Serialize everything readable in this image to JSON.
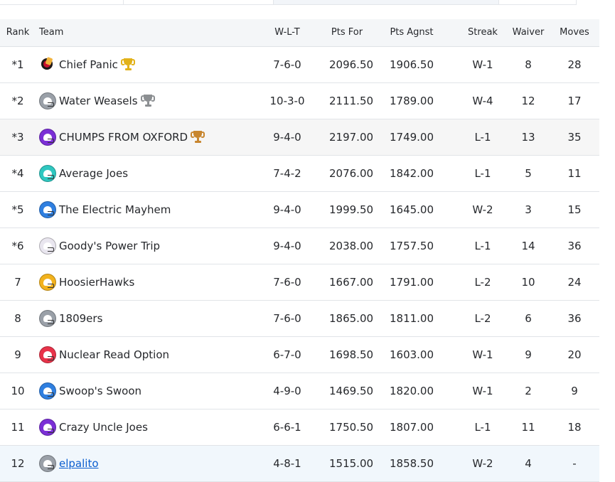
{
  "colors": {
    "header_bg": "#f4f6f8",
    "alt_row_bg": "#f6f6f6",
    "my_team_row_bg": "#f1f7fc",
    "link": "#0b5ecf",
    "gold": "#e2b21a",
    "silver": "#8c8f92",
    "bronze": "#c8862f"
  },
  "columns": {
    "rank": "Rank",
    "team": "Team",
    "wlt": "W-L-T",
    "pts_for": "Pts For",
    "pts_agnst": "Pts Agnst",
    "streak": "Streak",
    "waiver": "Waiver",
    "moves": "Moves"
  },
  "rows": [
    {
      "rank": "*1",
      "team": "Chief Panic",
      "logo": "chief-panic-logo",
      "logo_color": "#c8102e",
      "trophy": "gold",
      "wlt": "7-6-0",
      "pts_for": "2096.50",
      "pts_agnst": "1906.50",
      "streak": "W-1",
      "waiver": "8",
      "moves": "28"
    },
    {
      "rank": "*2",
      "team": "Water Weasels",
      "logo": "helmet-icon",
      "logo_color": "#9aa0a8",
      "trophy": "silver",
      "wlt": "10-3-0",
      "pts_for": "2111.50",
      "pts_agnst": "1789.00",
      "streak": "W-4",
      "waiver": "12",
      "moves": "17"
    },
    {
      "rank": "*3",
      "team": "CHUMPS FROM OXFORD",
      "logo": "helmet-icon",
      "logo_color": "#7b2fd6",
      "trophy": "bronze",
      "wlt": "9-4-0",
      "pts_for": "2197.00",
      "pts_agnst": "1749.00",
      "streak": "L-1",
      "waiver": "13",
      "moves": "35"
    },
    {
      "rank": "*4",
      "team": "Average Joes",
      "logo": "helmet-icon",
      "logo_color": "#2fc7c0",
      "trophy": "",
      "wlt": "7-4-2",
      "pts_for": "2076.00",
      "pts_agnst": "1842.00",
      "streak": "L-1",
      "waiver": "5",
      "moves": "11"
    },
    {
      "rank": "*5",
      "team": "The Electric Mayhem",
      "logo": "helmet-icon",
      "logo_color": "#2f7fe0",
      "trophy": "",
      "wlt": "9-4-0",
      "pts_for": "1999.50",
      "pts_agnst": "1645.00",
      "streak": "W-2",
      "waiver": "3",
      "moves": "15"
    },
    {
      "rank": "*6",
      "team": "Goody's Power Trip",
      "logo": "helmet-icon",
      "logo_color": "#e9e6ef",
      "trophy": "",
      "wlt": "9-4-0",
      "pts_for": "2038.00",
      "pts_agnst": "1757.50",
      "streak": "L-1",
      "waiver": "14",
      "moves": "36"
    },
    {
      "rank": "7",
      "team": "HoosierHawks",
      "logo": "helmet-icon",
      "logo_color": "#f2b21d",
      "trophy": "",
      "wlt": "7-6-0",
      "pts_for": "1667.00",
      "pts_agnst": "1791.00",
      "streak": "L-2",
      "waiver": "10",
      "moves": "24"
    },
    {
      "rank": "8",
      "team": "1809ers",
      "logo": "helmet-icon",
      "logo_color": "#9aa0a8",
      "trophy": "",
      "wlt": "7-6-0",
      "pts_for": "1865.00",
      "pts_agnst": "1811.00",
      "streak": "L-2",
      "waiver": "6",
      "moves": "36"
    },
    {
      "rank": "9",
      "team": "Nuclear Read Option",
      "logo": "helmet-icon",
      "logo_color": "#e8334a",
      "trophy": "",
      "wlt": "6-7-0",
      "pts_for": "1698.50",
      "pts_agnst": "1603.00",
      "streak": "W-1",
      "waiver": "9",
      "moves": "20"
    },
    {
      "rank": "10",
      "team": "Swoop's Swoon",
      "logo": "helmet-icon",
      "logo_color": "#2f7fe0",
      "trophy": "",
      "wlt": "4-9-0",
      "pts_for": "1469.50",
      "pts_agnst": "1820.00",
      "streak": "W-1",
      "waiver": "2",
      "moves": "9"
    },
    {
      "rank": "11",
      "team": "Crazy Uncle Joes",
      "logo": "helmet-icon",
      "logo_color": "#7b2fd6",
      "trophy": "",
      "wlt": "6-6-1",
      "pts_for": "1750.50",
      "pts_agnst": "1807.00",
      "streak": "L-1",
      "waiver": "11",
      "moves": "18"
    },
    {
      "rank": "12",
      "team": "elpalito",
      "logo": "helmet-icon",
      "logo_color": "#9aa0a8",
      "trophy": "",
      "link": true,
      "mine": true,
      "wlt": "4-8-1",
      "pts_for": "1515.00",
      "pts_agnst": "1858.50",
      "streak": "W-2",
      "waiver": "4",
      "moves": "-"
    }
  ]
}
